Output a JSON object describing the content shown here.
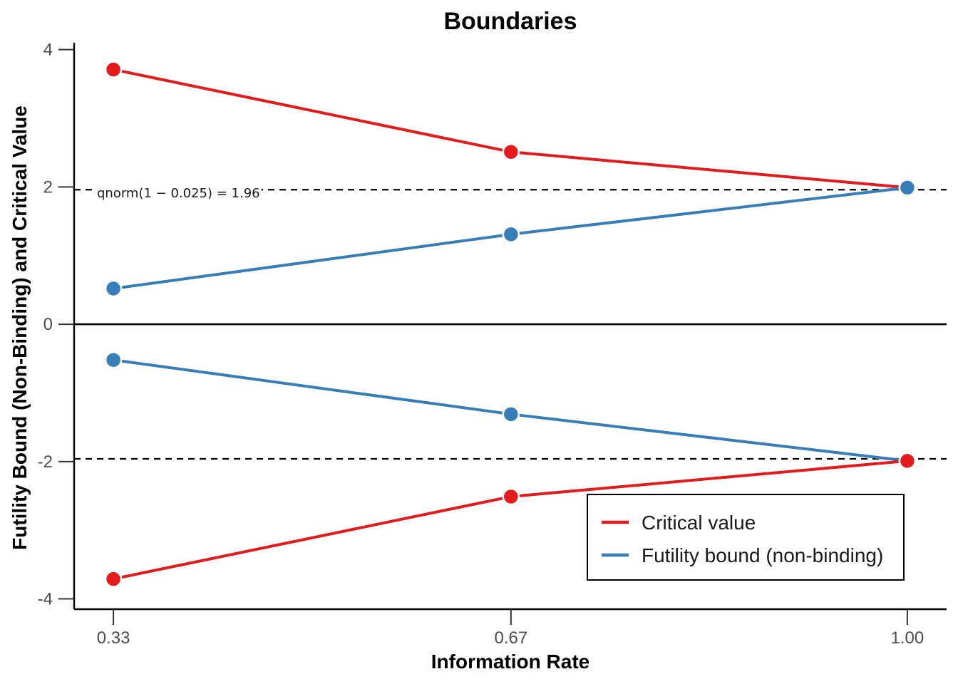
{
  "chart_data": {
    "type": "line",
    "title": "Boundaries",
    "xlabel": "Information Rate",
    "ylabel": "Futility Bound (Non-Binding) and Critical Value",
    "x": [
      0.333,
      0.667,
      1.0
    ],
    "x_tick_labels": [
      "0.33",
      "0.67",
      "1.00"
    ],
    "y_ticks": [
      4,
      2,
      0,
      -2,
      -4
    ],
    "y_tick_labels": [
      "4",
      "2",
      "0",
      "-2",
      "-4"
    ],
    "xlim": [
      0.3,
      1.033
    ],
    "ylim": [
      -4.15,
      4.1
    ],
    "series": [
      {
        "name": "Critical value",
        "color": "#e41a1c",
        "legend": true,
        "values": [
          3.71,
          2.51,
          1.99
        ]
      },
      {
        "name": "Futility bound (non-binding)",
        "color": "#377eb8",
        "legend": true,
        "values": [
          0.52,
          1.31,
          1.99
        ]
      },
      {
        "name": "Futility bound (non-binding)",
        "color": "#377eb8",
        "legend": false,
        "values": [
          -0.52,
          -1.31,
          -1.99
        ]
      },
      {
        "name": "Critical value",
        "color": "#e41a1c",
        "legend": false,
        "values": [
          -3.71,
          -2.51,
          -1.99
        ]
      }
    ],
    "reference_lines": [
      {
        "y": 1.96,
        "style": "dashed"
      },
      {
        "y": -1.96,
        "style": "dashed"
      },
      {
        "y": 0,
        "style": "solid"
      }
    ],
    "annotation": "qnorm(1 − 0.025) = 1.96",
    "legend_position": "bottom-right",
    "legend": [
      "Critical value",
      "Futility bound (non-binding)"
    ]
  }
}
